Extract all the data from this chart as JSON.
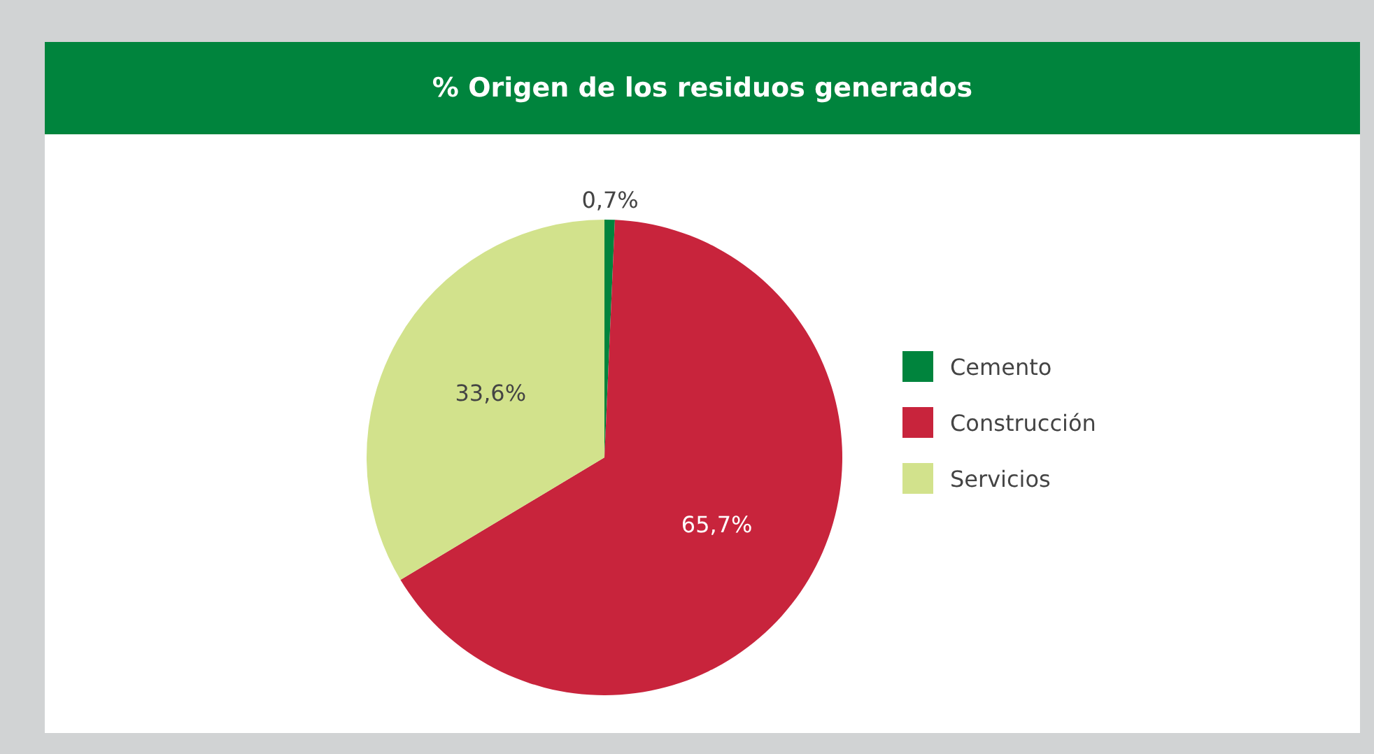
{
  "chart_data": {
    "type": "pie",
    "title": "% Origen de los residuos generados",
    "categories": [
      "Cemento",
      "Construcción",
      "Servicios"
    ],
    "values": [
      0.7,
      65.7,
      33.6
    ],
    "colors": [
      "#00843d",
      "#c8243c",
      "#d2e28c"
    ],
    "value_labels": [
      "0,7%",
      "65,7%",
      "33,6%"
    ],
    "legend": "right"
  }
}
